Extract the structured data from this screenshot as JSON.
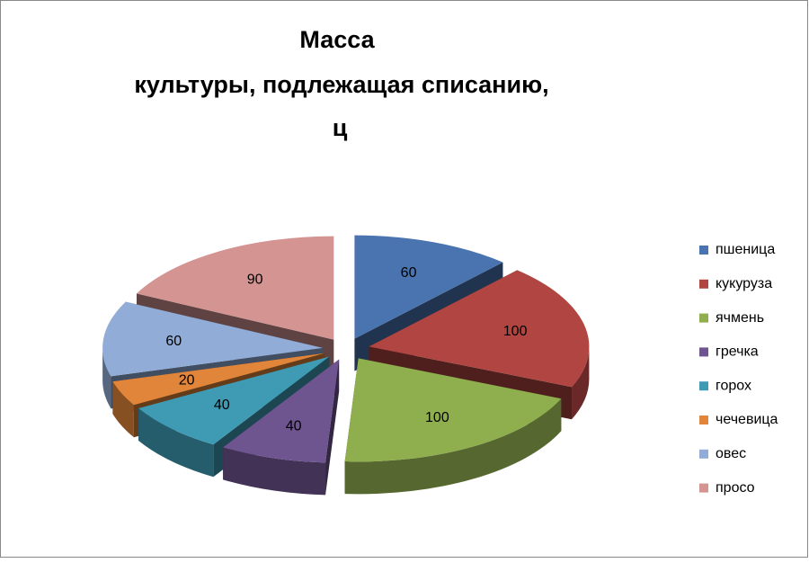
{
  "chart_data": {
    "type": "pie3d",
    "title": [
      "Масса",
      "культуры, подлежащая списанию,",
      "ц"
    ],
    "categories": [
      "пшеница",
      "кукуруза",
      "ячмень",
      "гречка",
      "горох",
      "чечевица",
      "овес",
      "просо"
    ],
    "values": [
      60,
      100,
      100,
      40,
      40,
      20,
      60,
      90
    ],
    "colors": [
      "#4a74b0",
      "#b04542",
      "#8fae4e",
      "#6e5590",
      "#3f9bb4",
      "#e0853a",
      "#91acd6",
      "#d39492"
    ],
    "legend": "right"
  }
}
